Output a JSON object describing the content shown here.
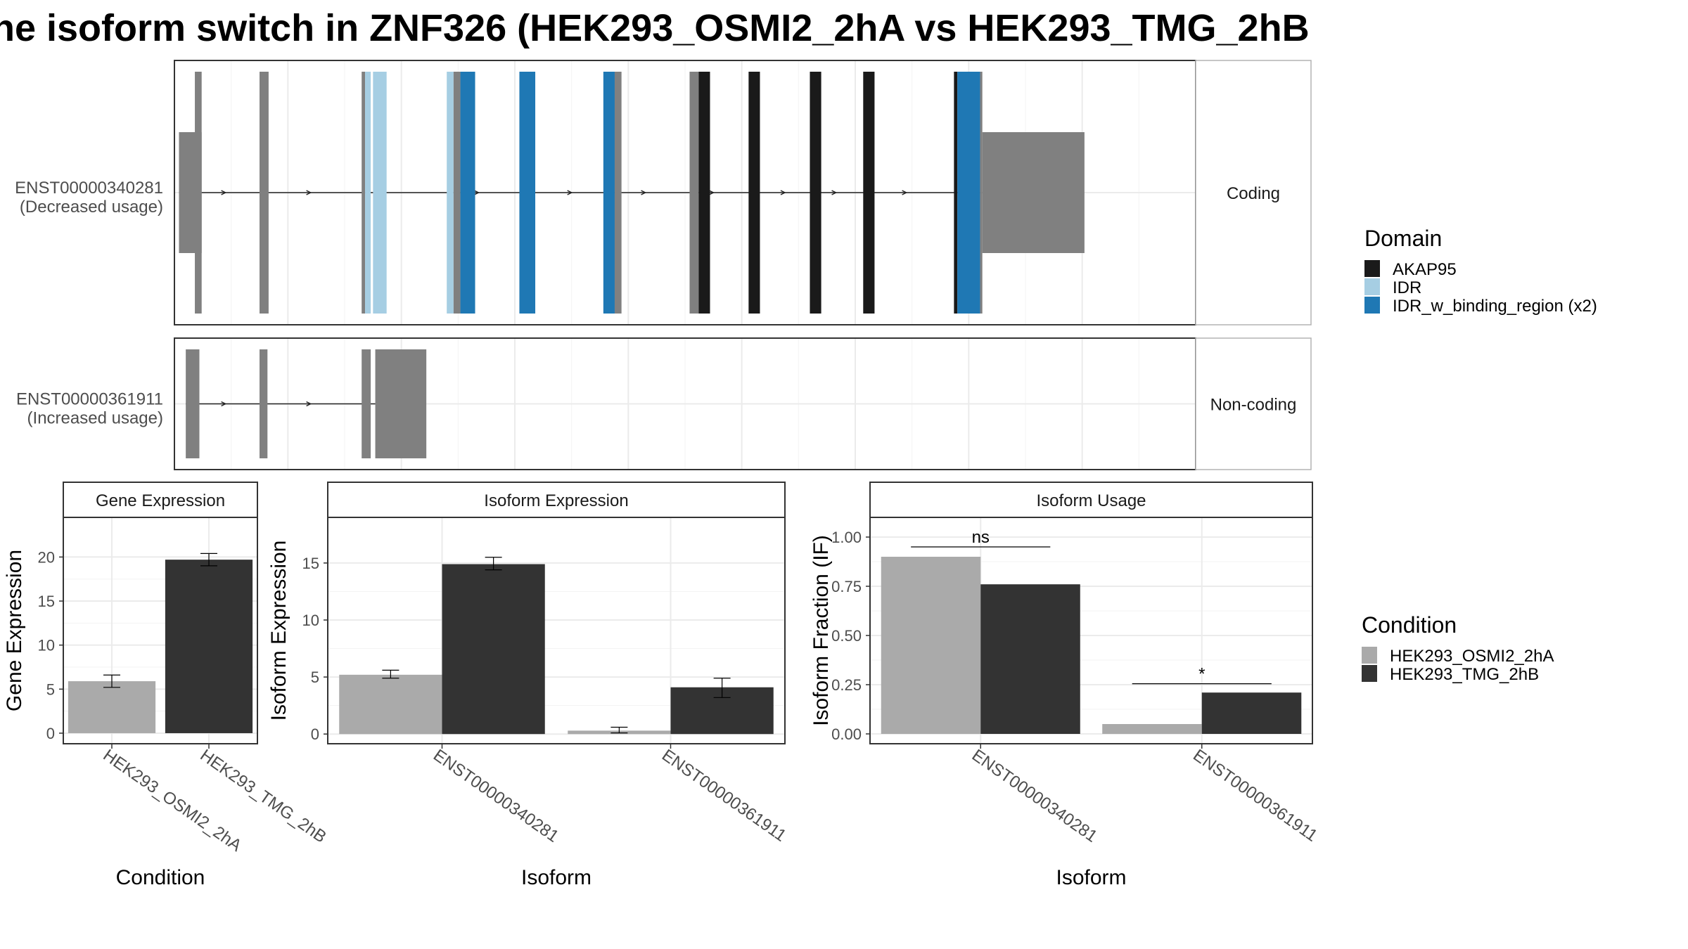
{
  "title": "he isoform switch in ZNF326 (HEK293_OSMI2_2hA vs HEK293_TMG_2hB",
  "colors": {
    "exon": "#808080",
    "AKAP95": "#1a1a1a",
    "IDR": "#a6cee3",
    "IDR_w_binding_region": "#1f78b4",
    "cond_A": "#aaaaaa",
    "cond_B": "#333333"
  },
  "transcripts": [
    {
      "id": "ENST00000340281",
      "label_line1": "ENST00000340281",
      "label_line2": "(Decreased usage)",
      "strip": "Coding",
      "exons": [
        {
          "s": 0.4,
          "e": 2.4,
          "h": "half",
          "seg": [
            [
              0.4,
              2.4,
              "exon"
            ]
          ]
        },
        {
          "s": 1.8,
          "e": 2.4,
          "h": "full",
          "seg": [
            [
              1.8,
              2.4,
              "exon"
            ]
          ]
        },
        {
          "s": 7.5,
          "e": 8.3,
          "h": "full",
          "seg": [
            [
              7.5,
              8.3,
              "exon"
            ]
          ]
        },
        {
          "s": 16.5,
          "e": 17.3,
          "h": "full",
          "seg": [
            [
              16.5,
              16.8,
              "exon"
            ],
            [
              16.8,
              17.3,
              "IDR"
            ]
          ]
        },
        {
          "s": 17.5,
          "e": 18.7,
          "h": "full",
          "seg": [
            [
              17.5,
              18.7,
              "IDR"
            ]
          ]
        },
        {
          "s": 24.0,
          "e": 26.5,
          "h": "full",
          "seg": [
            [
              24.0,
              24.6,
              "IDR"
            ],
            [
              24.6,
              25.2,
              "exon"
            ],
            [
              25.2,
              26.5,
              "IDR_w_binding_region"
            ]
          ]
        },
        {
          "s": 30.4,
          "e": 31.8,
          "h": "full",
          "seg": [
            [
              30.4,
              31.8,
              "IDR_w_binding_region"
            ]
          ]
        },
        {
          "s": 37.8,
          "e": 39.4,
          "h": "full",
          "seg": [
            [
              37.8,
              38.8,
              "IDR_w_binding_region"
            ],
            [
              38.8,
              39.4,
              "exon"
            ]
          ]
        },
        {
          "s": 45.4,
          "e": 47.2,
          "h": "full",
          "seg": [
            [
              45.4,
              46.2,
              "exon"
            ],
            [
              46.2,
              47.2,
              "AKAP95"
            ]
          ]
        },
        {
          "s": 50.6,
          "e": 51.6,
          "h": "full",
          "seg": [
            [
              50.6,
              51.6,
              "AKAP95"
            ]
          ]
        },
        {
          "s": 56.0,
          "e": 57.0,
          "h": "full",
          "seg": [
            [
              56.0,
              57.0,
              "AKAP95"
            ]
          ]
        },
        {
          "s": 60.7,
          "e": 61.7,
          "h": "full",
          "seg": [
            [
              60.7,
              61.7,
              "AKAP95"
            ]
          ]
        },
        {
          "s": 68.7,
          "e": 71.2,
          "h": "full",
          "seg": [
            [
              68.7,
              69.0,
              "AKAP95"
            ],
            [
              69.0,
              71.0,
              "IDR_w_binding_region"
            ],
            [
              71.0,
              71.2,
              "exon"
            ]
          ]
        },
        {
          "s": 71.2,
          "e": 80.2,
          "h": "half",
          "seg": [
            [
              71.2,
              80.2,
              "exon"
            ]
          ]
        }
      ],
      "arrows": [
        4.5,
        12.0,
        26.8,
        35.0,
        41.5,
        47.5,
        53.8,
        58.3,
        64.5,
        70.0
      ]
    },
    {
      "id": "ENST00000361911",
      "label_line1": "ENST00000361911",
      "label_line2": "(Increased usage)",
      "strip": "Non-coding",
      "exons": [
        {
          "s": 1.0,
          "e": 2.2,
          "h": "full",
          "seg": [
            [
              1.0,
              2.2,
              "exon"
            ]
          ]
        },
        {
          "s": 7.5,
          "e": 8.2,
          "h": "full",
          "seg": [
            [
              7.5,
              8.2,
              "exon"
            ]
          ]
        },
        {
          "s": 16.5,
          "e": 17.3,
          "h": "full",
          "seg": [
            [
              16.5,
              17.3,
              "exon"
            ]
          ]
        },
        {
          "s": 17.7,
          "e": 22.2,
          "h": "full",
          "seg": [
            [
              17.7,
              22.2,
              "exon"
            ]
          ]
        }
      ],
      "arrows": [
        4.5,
        12.0
      ]
    }
  ],
  "domain_legend": {
    "title": "Domain",
    "items": [
      {
        "label": "AKAP95",
        "color": "#1a1a1a"
      },
      {
        "label": "IDR",
        "color": "#a6cee3"
      },
      {
        "label": "IDR_w_binding_region (x2)",
        "color": "#1f78b4"
      }
    ]
  },
  "condition_legend": {
    "title": "Condition",
    "items": [
      {
        "label": "HEK293_OSMI2_2hA",
        "color": "#aaaaaa"
      },
      {
        "label": "HEK293_TMG_2hB",
        "color": "#333333"
      }
    ]
  },
  "chart_data": [
    {
      "type": "bar",
      "strip": "Gene Expression",
      "xlabel": "Condition",
      "ylabel": "Gene Expression",
      "categories": [
        "HEK293_OSMI2_2hA",
        "HEK293_TMG_2hB"
      ],
      "values": [
        5.9,
        19.7
      ],
      "err_low": [
        5.2,
        19.0
      ],
      "err_high": [
        6.6,
        20.4
      ],
      "ylim": [
        -1.2,
        24.5
      ],
      "yticks": [
        0,
        5,
        10,
        15,
        20
      ]
    },
    {
      "type": "bar",
      "strip": "Isoform Expression",
      "xlabel": "Isoform",
      "ylabel": "Isoform Expression",
      "categories": [
        "ENST00000340281",
        "ENST00000361911"
      ],
      "series": [
        {
          "name": "HEK293_OSMI2_2hA",
          "values": [
            5.2,
            0.3
          ],
          "err_low": [
            4.9,
            0.1
          ],
          "err_high": [
            5.6,
            0.6
          ]
        },
        {
          "name": "HEK293_TMG_2hB",
          "values": [
            14.9,
            4.1
          ],
          "err_low": [
            14.4,
            3.2
          ],
          "err_high": [
            15.5,
            4.9
          ]
        }
      ],
      "ylim": [
        -0.85,
        19.0
      ],
      "yticks": [
        0,
        5,
        10,
        15
      ]
    },
    {
      "type": "bar",
      "strip": "Isoform Usage",
      "xlabel": "Isoform",
      "ylabel": "Isoform Fraction (IF)",
      "categories": [
        "ENST00000340281",
        "ENST00000361911"
      ],
      "series": [
        {
          "name": "HEK293_OSMI2_2hA",
          "values": [
            0.9,
            0.05
          ]
        },
        {
          "name": "HEK293_TMG_2hB",
          "values": [
            0.76,
            0.21
          ]
        }
      ],
      "significance": [
        "ns",
        "*"
      ],
      "sig_level": [
        0.95,
        0.255
      ],
      "ylim": [
        -0.05,
        1.1
      ],
      "yticks": [
        "0.00",
        "0.25",
        "0.50",
        "0.75",
        "1.00"
      ]
    }
  ]
}
